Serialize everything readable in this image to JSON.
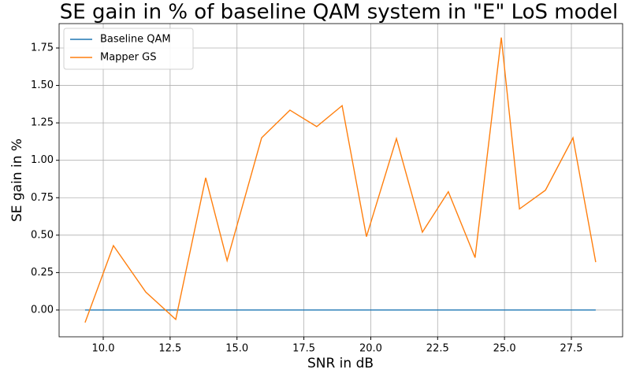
{
  "chart_data": {
    "type": "line",
    "title": "SE gain in % of baseline QAM system in \"E\" LoS model",
    "x_label": "SNR in dB",
    "y_label": "SE gain in %",
    "x": [
      9.32,
      10.38,
      11.59,
      12.71,
      13.83,
      14.63,
      15.92,
      16.98,
      17.98,
      18.93,
      19.84,
      20.96,
      21.93,
      22.9,
      23.9,
      24.88,
      25.56,
      26.53,
      27.56,
      28.41
    ],
    "series": [
      {
        "name": "Baseline QAM",
        "color": "#1f77b4",
        "values": [
          0,
          0,
          0,
          0,
          0,
          0,
          0,
          0,
          0,
          0,
          0,
          0,
          0,
          0,
          0,
          0,
          0,
          0,
          0,
          0
        ]
      },
      {
        "name": "Mapper GS",
        "color": "#ff7f0e",
        "values": [
          -0.084,
          0.43,
          0.12,
          -0.063,
          0.883,
          0.33,
          1.15,
          1.335,
          1.225,
          1.365,
          0.49,
          1.145,
          0.52,
          0.79,
          0.35,
          1.82,
          0.675,
          0.8,
          1.15,
          0.32
        ]
      }
    ],
    "xlim": [
      8.35,
      29.415
    ],
    "ylim": [
      -0.179,
      1.913
    ],
    "xticks": [
      {
        "value": 10,
        "label": "10.0"
      },
      {
        "value": 12.5,
        "label": "12.5"
      },
      {
        "value": 15,
        "label": "15.0"
      },
      {
        "value": 17.5,
        "label": "17.5"
      },
      {
        "value": 20,
        "label": "20.0"
      },
      {
        "value": 22.5,
        "label": "22.5"
      },
      {
        "value": 25,
        "label": "25.0"
      },
      {
        "value": 27.5,
        "label": "27.5"
      }
    ],
    "yticks": [
      {
        "value": 0,
        "label": "0.00"
      },
      {
        "value": 0.25,
        "label": "0.25"
      },
      {
        "value": 0.5,
        "label": "0.50"
      },
      {
        "value": 0.75,
        "label": "0.75"
      },
      {
        "value": 1,
        "label": "1.00"
      },
      {
        "value": 1.25,
        "label": "1.25"
      },
      {
        "value": 1.5,
        "label": "1.50"
      },
      {
        "value": 1.75,
        "label": "1.75"
      }
    ],
    "grid": true,
    "legend": "upper-left"
  }
}
